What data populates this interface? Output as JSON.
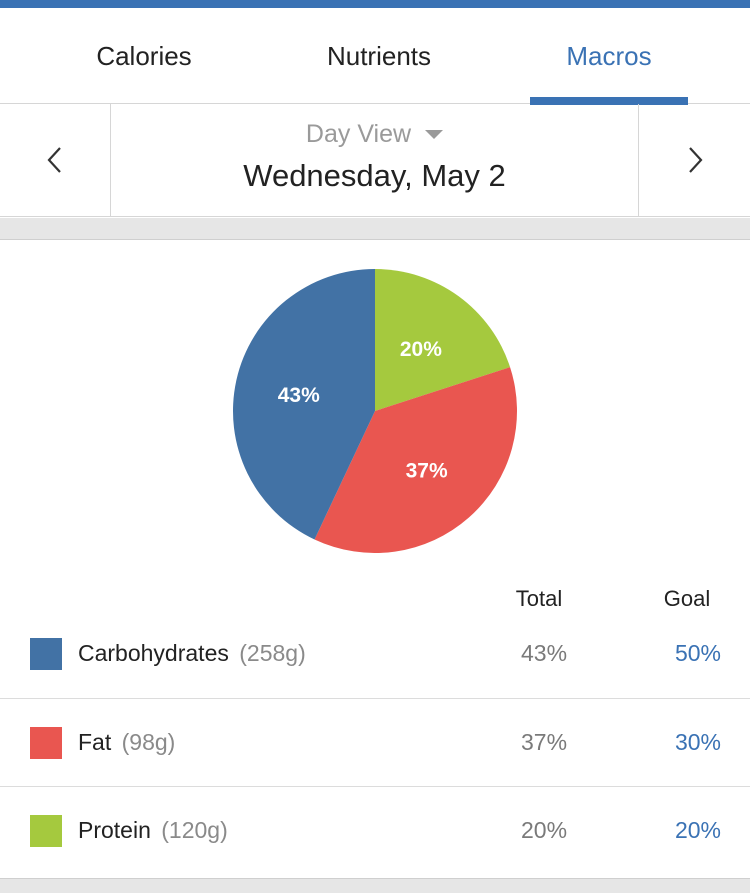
{
  "colors": {
    "accent": "#3a72b4",
    "carbs": "#4272a5",
    "fat": "#e95650",
    "protein": "#a5c93e"
  },
  "tabs": [
    {
      "label": "Calories",
      "active": false
    },
    {
      "label": "Nutrients",
      "active": false
    },
    {
      "label": "Macros",
      "active": true
    }
  ],
  "date_nav": {
    "prev_icon": "chevron-left-icon",
    "next_icon": "chevron-right-icon",
    "view_label": "Day View",
    "date": "Wednesday, May 2"
  },
  "chart_data": {
    "type": "pie",
    "title": "",
    "slices": [
      {
        "name": "Protein",
        "value": 20,
        "label": "20%",
        "color": "#a5c93e"
      },
      {
        "name": "Fat",
        "value": 37,
        "label": "37%",
        "color": "#e95650"
      },
      {
        "name": "Carbohydrates",
        "value": 43,
        "label": "43%",
        "color": "#4272a5"
      }
    ]
  },
  "table": {
    "header_total": "Total",
    "header_goal": "Goal",
    "rows": [
      {
        "name": "Carbohydrates",
        "grams": "(258g)",
        "total": "43%",
        "goal": "50%",
        "color": "#4272a5"
      },
      {
        "name": "Fat",
        "grams": "(98g)",
        "total": "37%",
        "goal": "30%",
        "color": "#e95650"
      },
      {
        "name": "Protein",
        "grams": "(120g)",
        "total": "20%",
        "goal": "20%",
        "color": "#a5c93e"
      }
    ]
  }
}
